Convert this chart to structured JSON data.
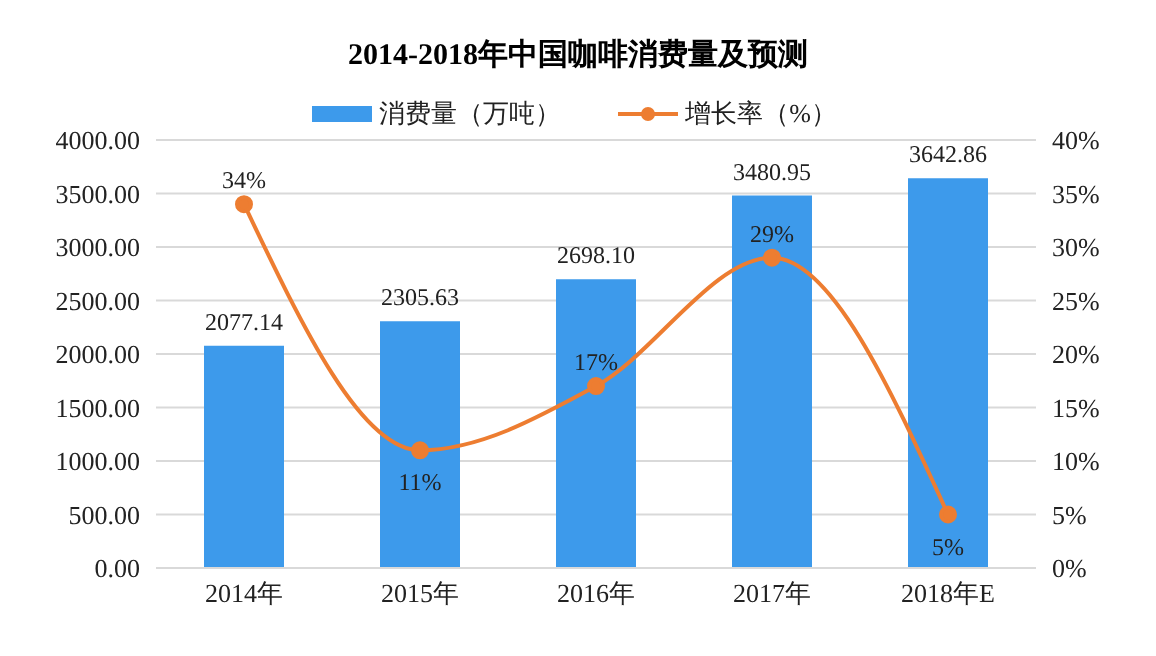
{
  "chart_data": {
    "type": "bar",
    "title": "2014-2018年中国咖啡消费量及预测",
    "categories": [
      "2014年",
      "2015年",
      "2016年",
      "2017年",
      "2018年E"
    ],
    "series": [
      {
        "name": "消费量（万吨）",
        "color": "#3d9aeb",
        "values": [
          2077.14,
          2305.63,
          2698.1,
          3480.95,
          3642.86
        ],
        "value_labels": [
          "2077.14",
          "2305.63",
          "2698.10",
          "3480.95",
          "3642.86"
        ]
      },
      {
        "name": "增长率（%）",
        "type": "line",
        "axis": "y2",
        "color": "#ed7d31",
        "values": [
          34,
          11,
          17,
          29,
          5
        ],
        "value_labels": [
          "34%",
          "11%",
          "17%",
          "29%",
          "5%"
        ]
      }
    ],
    "ylim": [
      0,
      4000
    ],
    "yticks": [
      {
        "value": 0,
        "label": "0.00"
      },
      {
        "value": 500,
        "label": "500.00"
      },
      {
        "value": 1000,
        "label": "1000.00"
      },
      {
        "value": 1500,
        "label": "1500.00"
      },
      {
        "value": 2000,
        "label": "2000.00"
      },
      {
        "value": 2500,
        "label": "2500.00"
      },
      {
        "value": 3000,
        "label": "3000.00"
      },
      {
        "value": 3500,
        "label": "3500.00"
      },
      {
        "value": 4000,
        "label": "4000.00"
      }
    ],
    "y2lim": [
      0,
      40
    ],
    "y2ticks": [
      {
        "value": 0,
        "label": "0%"
      },
      {
        "value": 5,
        "label": "5%"
      },
      {
        "value": 10,
        "label": "10%"
      },
      {
        "value": 15,
        "label": "15%"
      },
      {
        "value": 20,
        "label": "20%"
      },
      {
        "value": 25,
        "label": "25%"
      },
      {
        "value": 30,
        "label": "30%"
      },
      {
        "value": 35,
        "label": "35%"
      },
      {
        "value": 40,
        "label": "40%"
      }
    ],
    "grid": "y",
    "legend": "top",
    "marker": "circle",
    "line_style": "solid"
  }
}
